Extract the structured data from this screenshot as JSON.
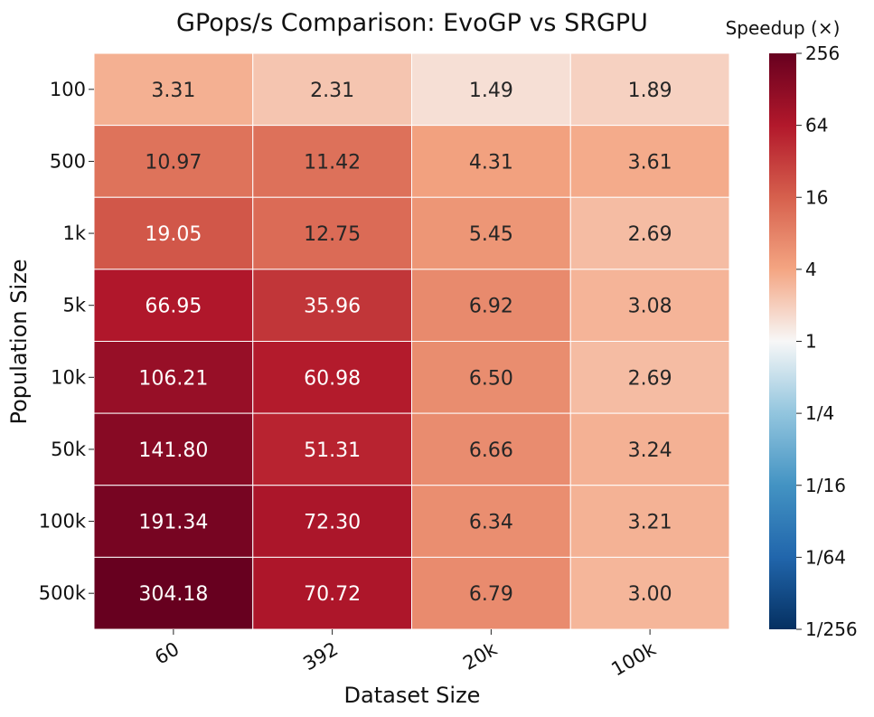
{
  "chart_data": {
    "type": "heatmap",
    "title": "GPops/s Comparison: EvoGP vs SRGPU",
    "xlabel": "Dataset Size",
    "ylabel": "Population Size",
    "x_categories": [
      "60",
      "392",
      "20k",
      "100k"
    ],
    "y_categories": [
      "100",
      "500",
      "1k",
      "5k",
      "10k",
      "50k",
      "100k",
      "500k"
    ],
    "values": [
      [
        3.31,
        2.31,
        1.49,
        1.89
      ],
      [
        10.97,
        11.42,
        4.31,
        3.61
      ],
      [
        19.05,
        12.75,
        5.45,
        2.69
      ],
      [
        66.95,
        35.96,
        6.92,
        3.08
      ],
      [
        106.21,
        60.98,
        6.5,
        2.69
      ],
      [
        141.8,
        51.31,
        6.66,
        3.24
      ],
      [
        191.34,
        72.3,
        6.34,
        3.21
      ],
      [
        304.18,
        70.72,
        6.79,
        3.0
      ]
    ],
    "cell_labels": [
      [
        "3.31",
        "2.31",
        "1.49",
        "1.89"
      ],
      [
        "10.97",
        "11.42",
        "4.31",
        "3.61"
      ],
      [
        "19.05",
        "12.75",
        "5.45",
        "2.69"
      ],
      [
        "66.95",
        "35.96",
        "6.92",
        "3.08"
      ],
      [
        "106.21",
        "60.98",
        "6.50",
        "2.69"
      ],
      [
        "141.80",
        "51.31",
        "6.66",
        "3.24"
      ],
      [
        "191.34",
        "72.30",
        "6.34",
        "3.21"
      ],
      [
        "304.18",
        "70.72",
        "6.79",
        "3.00"
      ]
    ],
    "colorbar": {
      "label": "Speedup (×)",
      "scale": "log2",
      "range": [
        0.00390625,
        256
      ],
      "colormap": "RdBu_r",
      "ticks": [
        256,
        64,
        16,
        4,
        1,
        0.25,
        0.0625,
        0.015625,
        0.00390625
      ],
      "tick_labels": [
        "256",
        "64",
        "16",
        "4",
        "1",
        "1/4",
        "1/16",
        "1/64",
        "1/256"
      ],
      "placement": "right"
    }
  }
}
